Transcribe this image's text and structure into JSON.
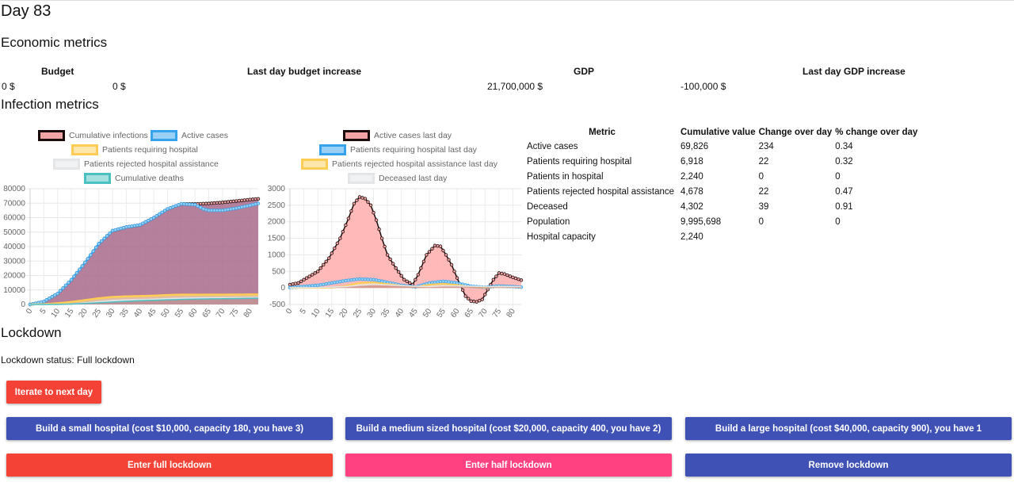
{
  "day_title": "Day 83",
  "economic": {
    "title": "Economic metrics",
    "headers": [
      "Budget",
      "Last day budget increase",
      "GDP",
      "Last day GDP increase"
    ],
    "budget": "0 $",
    "budget_increase": "0 $",
    "gdp": "21,700,000 $",
    "gdp_increase": "-100,000 $"
  },
  "infection": {
    "title": "Infection metrics",
    "legend_left": [
      "Cumulative infections",
      "Active cases",
      "Patients requiring hospital",
      "Patients rejected hospital assistance",
      "Cumulative deaths"
    ],
    "legend_right": [
      "Active cases last day",
      "Patients requiring hospital last day",
      "Patients rejected hospital assistance last day",
      "Deceased last day"
    ],
    "table": {
      "headers": [
        "Metric",
        "Cumulative value",
        "Change over day",
        "% change over day"
      ],
      "rows": [
        {
          "metric": "Active cases",
          "value": "69,826",
          "change": "234",
          "pct": "0.34"
        },
        {
          "metric": "Patients requiring hospital",
          "value": "6,918",
          "change": "22",
          "pct": "0.32"
        },
        {
          "metric": "Patients in hospital",
          "value": "2,240",
          "change": "0",
          "pct": "0"
        },
        {
          "metric": "Patients rejected hospital assistance",
          "value": "4,678",
          "change": "22",
          "pct": "0.47"
        },
        {
          "metric": "Deceased",
          "value": "4,302",
          "change": "39",
          "pct": "0.91"
        },
        {
          "metric": "Population",
          "value": "9,995,698",
          "change": "0",
          "pct": "0"
        },
        {
          "metric": "Hospital capacity",
          "value": "2,240",
          "change": "",
          "pct": ""
        }
      ]
    }
  },
  "lockdown": {
    "title": "Lockdown",
    "status": "Lockdown status: Full lockdown"
  },
  "buttons": {
    "iterate": "Iterate to next day",
    "small_hospital": "Build a small hospital (cost $10,000, capacity 180, you have 3)",
    "medium_hospital": "Build a medium sized hospital (cost $20,000, capacity 400, you have 2)",
    "large_hospital": "Build a large hospital (cost $40,000, capacity 900), you have 1",
    "full_lockdown": "Enter full lockdown",
    "half_lockdown": "Enter half lockdown",
    "remove_lockdown": "Remove lockdown"
  },
  "colors": {
    "red": "#f44336",
    "pink": "#ff4081",
    "indigo": "#3f51b5",
    "infections_fill": "#b07f9b",
    "infections_line": "#1a0a0a",
    "active_line": "#36a2eb",
    "hospital_line": "#ffcd56",
    "rejected_line": "#c9cbcf",
    "deaths_line": "#4bc0c0",
    "daily_fill": "#ffb1b1"
  },
  "chart_data": [
    {
      "type": "area",
      "title": "",
      "xlabel": "",
      "ylabel": "",
      "x_ticks": [
        "0",
        "5",
        "10",
        "15",
        "20",
        "25",
        "30",
        "35",
        "40",
        "45",
        "50",
        "55",
        "60",
        "65",
        "70",
        "75",
        "80"
      ],
      "y_ticks": [
        "0",
        "10000",
        "20000",
        "30000",
        "40000",
        "50000",
        "60000",
        "70000",
        "80000"
      ],
      "xlim": [
        0,
        83
      ],
      "ylim": [
        0,
        80000
      ],
      "series": [
        {
          "name": "Cumulative infections",
          "x": [
            0,
            5,
            10,
            15,
            20,
            25,
            30,
            35,
            40,
            45,
            50,
            55,
            60,
            65,
            70,
            75,
            80,
            83
          ],
          "values": [
            0,
            2000,
            7500,
            17000,
            29000,
            42000,
            51000,
            53500,
            55000,
            60000,
            66000,
            69500,
            69500,
            69800,
            70500,
            71500,
            72500,
            73000
          ]
        },
        {
          "name": "Active cases",
          "x": [
            0,
            5,
            10,
            15,
            20,
            25,
            30,
            35,
            40,
            45,
            50,
            55,
            60,
            63,
            65,
            70,
            75,
            80,
            83
          ],
          "values": [
            0,
            2000,
            7500,
            17000,
            29000,
            42000,
            51000,
            53500,
            55000,
            60000,
            66000,
            69500,
            69000,
            66000,
            65000,
            65000,
            66500,
            68500,
            69826
          ]
        },
        {
          "name": "Patients requiring hospital",
          "x": [
            0,
            5,
            10,
            15,
            20,
            25,
            30,
            35,
            40,
            45,
            50,
            55,
            60,
            65,
            70,
            75,
            80,
            83
          ],
          "values": [
            0,
            200,
            800,
            1800,
            3000,
            4300,
            5200,
            5600,
            5800,
            6100,
            6500,
            6800,
            6800,
            6800,
            6800,
            6850,
            6900,
            6918
          ]
        },
        {
          "name": "Patients rejected hospital assistance",
          "x": [
            0,
            5,
            10,
            15,
            20,
            25,
            30,
            35,
            40,
            45,
            50,
            55,
            60,
            65,
            70,
            75,
            80,
            83
          ],
          "values": [
            0,
            0,
            0,
            200,
            900,
            1800,
            2600,
            3000,
            3200,
            3500,
            3900,
            4200,
            4400,
            4450,
            4500,
            4580,
            4650,
            4678
          ]
        },
        {
          "name": "Cumulative deaths",
          "x": [
            0,
            5,
            10,
            15,
            20,
            25,
            30,
            35,
            40,
            45,
            50,
            55,
            60,
            65,
            70,
            75,
            80,
            83
          ],
          "values": [
            0,
            0,
            100,
            300,
            700,
            1200,
            1700,
            2200,
            2600,
            2900,
            3200,
            3500,
            3700,
            3850,
            3950,
            4100,
            4250,
            4302
          ]
        }
      ]
    },
    {
      "type": "area",
      "title": "",
      "xlabel": "",
      "ylabel": "",
      "x_ticks": [
        "0",
        "5",
        "10",
        "15",
        "20",
        "25",
        "30",
        "35",
        "40",
        "45",
        "50",
        "55",
        "60",
        "65",
        "70",
        "75",
        "80"
      ],
      "y_ticks": [
        "-500",
        "0",
        "500",
        "1000",
        "1500",
        "2000",
        "2500",
        "3000"
      ],
      "xlim": [
        0,
        83
      ],
      "ylim": [
        -500,
        3000
      ],
      "series": [
        {
          "name": "Active cases last day",
          "x": [
            0,
            3,
            6,
            10,
            14,
            18,
            21,
            23,
            25,
            27,
            29,
            31,
            33,
            35,
            38,
            41,
            44,
            46,
            49,
            52,
            54,
            56,
            58,
            60,
            63,
            65,
            67,
            69,
            71,
            73,
            75,
            77,
            80,
            83
          ],
          "values": [
            100,
            150,
            300,
            500,
            900,
            1500,
            2100,
            2550,
            2750,
            2700,
            2500,
            2050,
            1500,
            1000,
            600,
            250,
            100,
            400,
            1000,
            1280,
            1260,
            1000,
            700,
            300,
            -250,
            -400,
            -420,
            -350,
            -50,
            250,
            450,
            420,
            320,
            234
          ]
        },
        {
          "name": "Patients requiring hospital last day",
          "x": [
            0,
            10,
            20,
            25,
            30,
            35,
            40,
            45,
            50,
            55,
            60,
            65,
            70,
            75,
            80,
            83
          ],
          "values": [
            10,
            80,
            220,
            270,
            250,
            170,
            80,
            30,
            150,
            200,
            150,
            50,
            20,
            60,
            40,
            22
          ]
        },
        {
          "name": "Patients rejected hospital assistance last day",
          "x": [
            0,
            10,
            15,
            20,
            25,
            30,
            35,
            40,
            45,
            50,
            55,
            60,
            65,
            70,
            75,
            80,
            83
          ],
          "values": [
            0,
            0,
            10,
            60,
            150,
            170,
            120,
            70,
            30,
            100,
            130,
            90,
            30,
            10,
            40,
            30,
            22
          ]
        },
        {
          "name": "Deceased last day",
          "x": [
            0,
            10,
            20,
            25,
            30,
            35,
            40,
            45,
            50,
            55,
            60,
            65,
            70,
            75,
            80,
            83
          ],
          "values": [
            0,
            10,
            40,
            80,
            100,
            90,
            70,
            50,
            40,
            60,
            60,
            50,
            40,
            40,
            40,
            39
          ]
        }
      ]
    }
  ]
}
